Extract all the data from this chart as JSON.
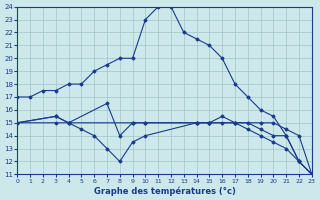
{
  "xlabel": "Graphe des températures (°c)",
  "bg_color": "#cce8ea",
  "line_color": "#1a3a8c",
  "grid_color": "#a0c4c8",
  "xmin": 0,
  "xmax": 23,
  "ymin": 11,
  "ymax": 24,
  "lines": [
    {
      "x": [
        0,
        1,
        2,
        3,
        4,
        5,
        6,
        7,
        8,
        9,
        10,
        11,
        12,
        13,
        14,
        15,
        16,
        17,
        18,
        19,
        20,
        21,
        22,
        23
      ],
      "y": [
        17,
        17,
        17.5,
        17.5,
        18,
        18,
        19,
        19.5,
        20,
        20,
        23,
        24,
        24,
        22,
        21.5,
        21,
        20,
        18,
        17,
        16,
        15.5,
        14,
        12,
        11
      ]
    },
    {
      "x": [
        0,
        3,
        4,
        9,
        10,
        14,
        15,
        16,
        17,
        19,
        20,
        21,
        22,
        23
      ],
      "y": [
        15,
        15,
        15,
        15,
        15,
        15,
        15,
        15.5,
        15,
        15,
        15,
        14.5,
        14,
        11
      ]
    },
    {
      "x": [
        0,
        3,
        4,
        5,
        6,
        7,
        8,
        9,
        10,
        14,
        15,
        16,
        17,
        18,
        19,
        20,
        21,
        22,
        23
      ],
      "y": [
        15,
        15.5,
        15,
        14.5,
        14,
        13,
        12,
        13.5,
        14,
        15,
        15,
        15,
        15,
        14.5,
        14,
        13.5,
        13,
        12,
        11
      ]
    },
    {
      "x": [
        0,
        3,
        4,
        7,
        8,
        9,
        10,
        14,
        15,
        17,
        18,
        19,
        20,
        21,
        22,
        23
      ],
      "y": [
        15,
        15.5,
        15,
        16.5,
        14,
        15,
        15,
        15,
        15,
        15,
        15,
        14.5,
        14,
        14,
        12,
        11
      ]
    }
  ]
}
